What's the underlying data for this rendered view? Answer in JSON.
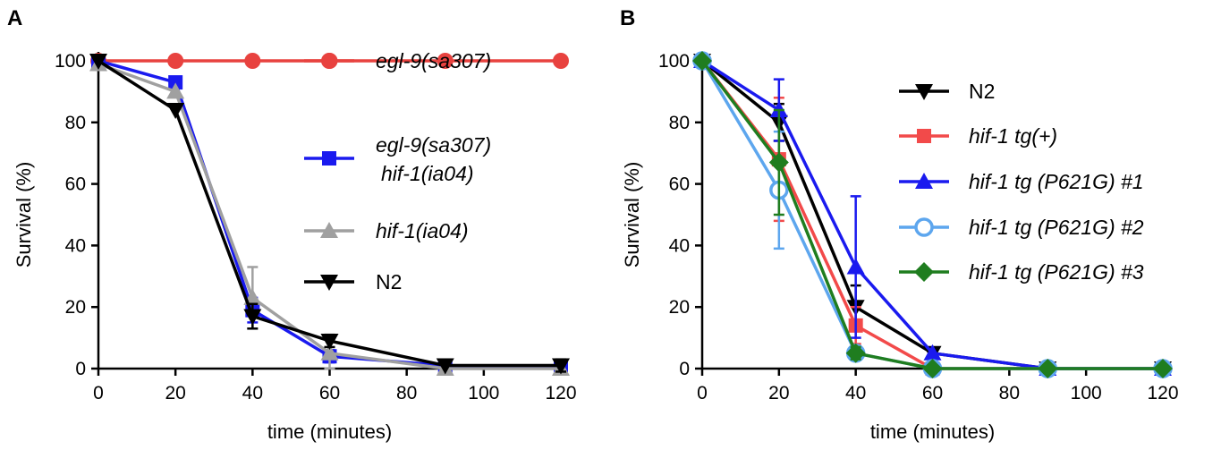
{
  "chart_data": [
    {
      "type": "line",
      "panel_label": "A",
      "xlabel": "time (minutes)",
      "ylabel": "Survival (%)",
      "xlim": [
        0,
        120
      ],
      "ylim": [
        0,
        100
      ],
      "xticks": [
        "0",
        "20",
        "40",
        "60",
        "80",
        "100",
        "120"
      ],
      "yticks": [
        "0",
        "20",
        "40",
        "60",
        "80",
        "100"
      ],
      "legend_position": "right",
      "series": [
        {
          "name": "egl-9(sa307)",
          "color": "#e8423f",
          "marker": "circle",
          "italic": true,
          "x": [
            0,
            20,
            40,
            60,
            90,
            120
          ],
          "y": [
            100,
            100,
            100,
            100,
            100,
            100
          ],
          "err": [
            0,
            0,
            0,
            0,
            0,
            0
          ]
        },
        {
          "name": "egl-9(sa307)\nhif-1(ia04)",
          "color": "#1a1aef",
          "marker": "square",
          "italic": true,
          "x": [
            0,
            20,
            40,
            60,
            90,
            120
          ],
          "y": [
            100,
            93,
            19,
            4,
            1,
            0
          ],
          "err": [
            0,
            0,
            4,
            2,
            0,
            0
          ]
        },
        {
          "name": "hif-1(ia04)",
          "color": "#a0a0a0",
          "marker": "triangle-up",
          "italic": true,
          "x": [
            0,
            20,
            40,
            60,
            90,
            120
          ],
          "y": [
            99,
            90,
            23,
            5,
            0,
            0
          ],
          "err": [
            0,
            0,
            10,
            5,
            0,
            0
          ]
        },
        {
          "name": "N2",
          "color": "#000000",
          "marker": "triangle-down",
          "italic": false,
          "x": [
            0,
            20,
            40,
            60,
            90,
            120
          ],
          "y": [
            100,
            84,
            17,
            9,
            1,
            1
          ],
          "err": [
            0,
            0,
            4,
            2,
            0,
            2
          ]
        }
      ]
    },
    {
      "type": "line",
      "panel_label": "B",
      "xlabel": "time (minutes)",
      "ylabel": "Survival (%)",
      "xlim": [
        0,
        120
      ],
      "ylim": [
        0,
        100
      ],
      "xticks": [
        "0",
        "20",
        "40",
        "60",
        "80",
        "100",
        "120"
      ],
      "yticks": [
        "0",
        "20",
        "40",
        "60",
        "80",
        "100"
      ],
      "legend_position": "right",
      "series": [
        {
          "name": "N2",
          "color": "#000000",
          "marker": "triangle-down",
          "italic": false,
          "x": [
            0,
            20,
            40,
            60,
            90,
            120
          ],
          "y": [
            100,
            80,
            20,
            5,
            0,
            0
          ],
          "err": [
            0,
            6,
            7,
            0,
            0,
            2
          ]
        },
        {
          "name": "hif-1 tg(+)",
          "color": "#f24a4a",
          "marker": "square",
          "italic": true,
          "x": [
            0,
            20,
            40,
            60,
            90,
            120
          ],
          "y": [
            100,
            68,
            14,
            0,
            0,
            0
          ],
          "err": [
            0,
            20,
            6,
            0,
            0,
            0
          ]
        },
        {
          "name": "hif-1 tg (P621G) #1",
          "color": "#1a1aef",
          "marker": "triangle-up",
          "italic": true,
          "x": [
            0,
            20,
            40,
            60,
            90,
            120
          ],
          "y": [
            100,
            84,
            33,
            5,
            0,
            0
          ],
          "err": [
            0,
            10,
            23,
            0,
            0,
            0
          ]
        },
        {
          "name": "hif-1 tg (P621G) #2",
          "color": "#5da6ee",
          "marker": "circle-open",
          "italic": true,
          "x": [
            0,
            20,
            40,
            60,
            90,
            120
          ],
          "y": [
            100,
            58,
            5,
            0,
            0,
            0
          ],
          "err": [
            0,
            19,
            2,
            0,
            0,
            0
          ]
        },
        {
          "name": "hif-1 tg (P621G) #3",
          "color": "#1f7d1f",
          "marker": "diamond",
          "italic": true,
          "x": [
            0,
            20,
            40,
            60,
            90,
            120
          ],
          "y": [
            100,
            67,
            5,
            0,
            0,
            0
          ],
          "err": [
            0,
            17,
            2,
            0,
            0,
            0
          ]
        }
      ]
    }
  ]
}
